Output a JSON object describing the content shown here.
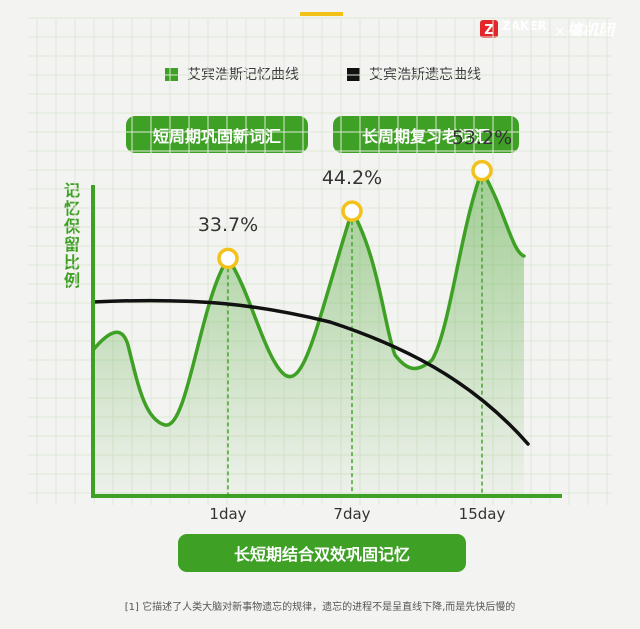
{
  "brand": {
    "name": "ZAKER",
    "partner": "搞机团",
    "separator": "×"
  },
  "legend": [
    {
      "label": "艾宾浩斯记忆曲线",
      "color": "#3ea024"
    },
    {
      "label": "艾宾浩斯遗忘曲线",
      "color": "#111111"
    }
  ],
  "buttons": {
    "short_term": "短周期巩固新词汇",
    "long_term": "长周期复习老词汇",
    "bottom": "长短期结合双效巩固记忆"
  },
  "footnote": "[1] 它描述了人类大脑对新事物遗忘的规律，遗忘的进程不是呈直线下降,而是先快后慢的",
  "chart_data": {
    "type": "line",
    "ylabel": "记忆保留比例",
    "ticks": [
      "1day",
      "7day",
      "15day"
    ],
    "peaks": [
      {
        "tick": "1day",
        "value": 33.7,
        "label": "33.7%"
      },
      {
        "tick": "7day",
        "value": 44.2,
        "label": "44.2%"
      },
      {
        "tick": "15day",
        "value": 53.2,
        "label": "53.2%"
      }
    ],
    "series": [
      {
        "name": "艾宾浩斯记忆曲线",
        "color": "#3ea024",
        "area": true
      },
      {
        "name": "艾宾浩斯遗忘曲线",
        "color": "#111111",
        "area": false
      }
    ],
    "grid": true
  }
}
